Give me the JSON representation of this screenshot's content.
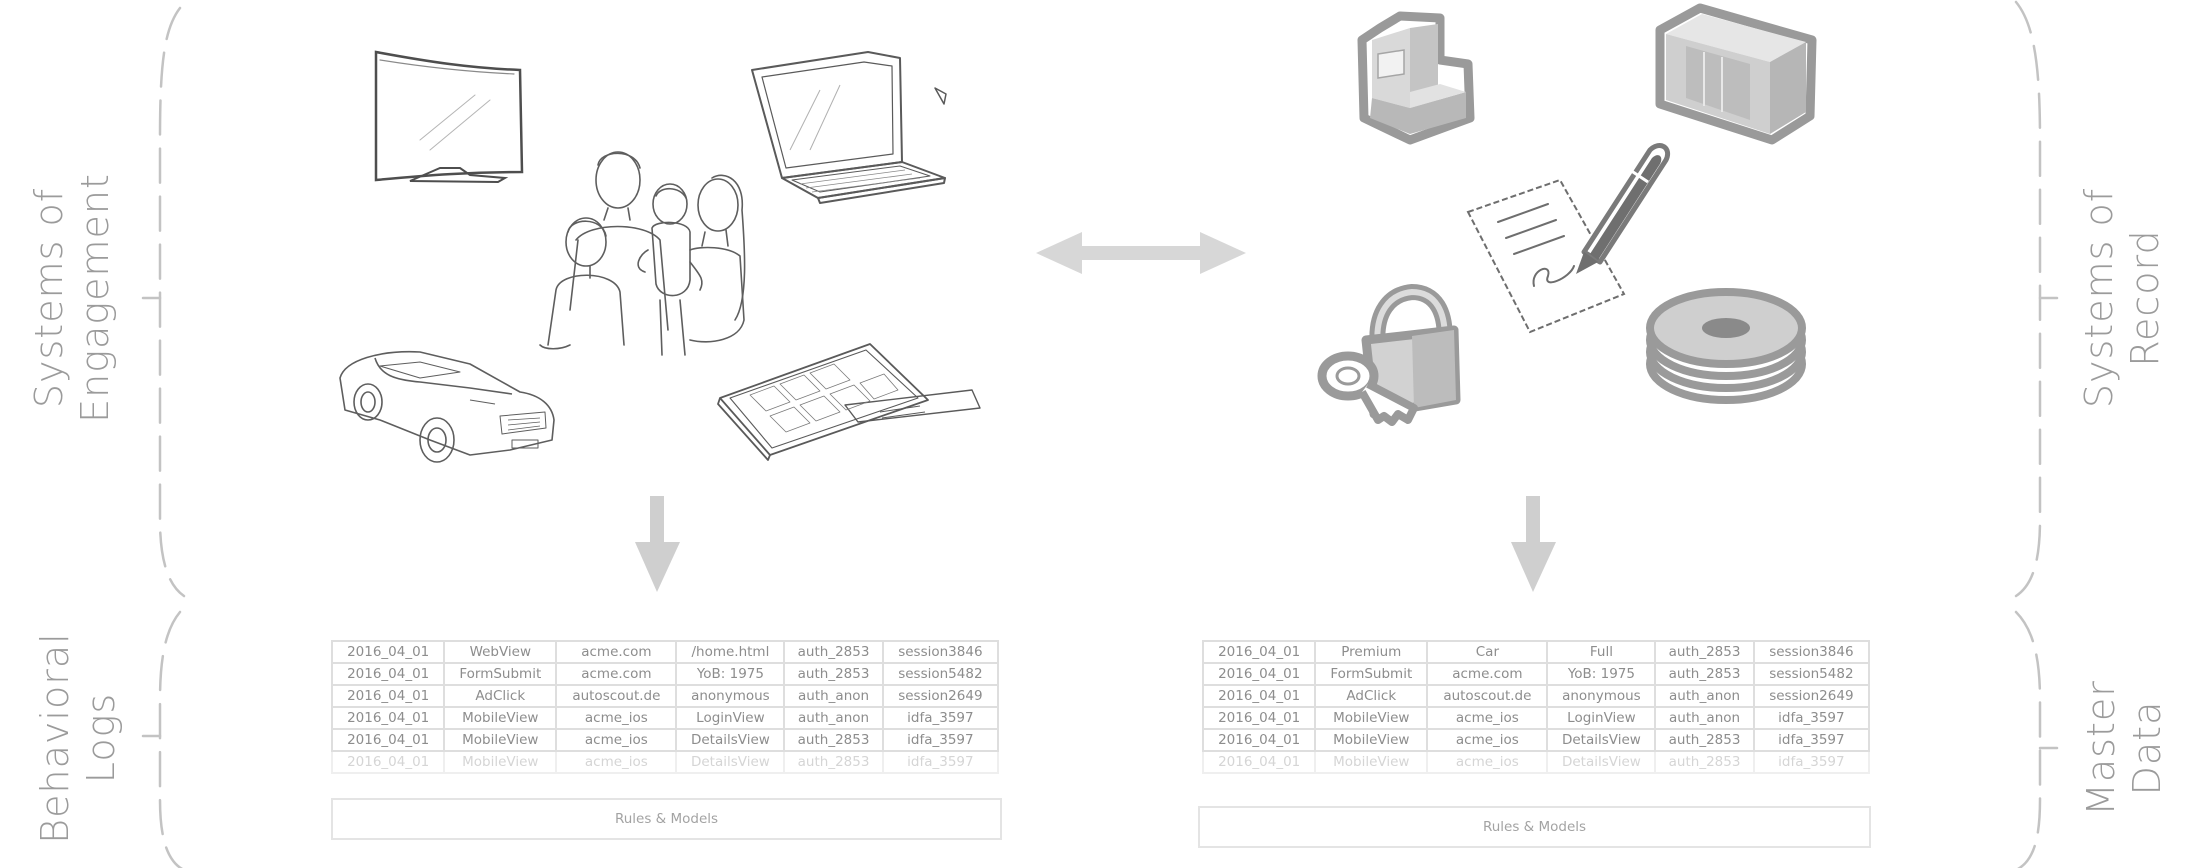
{
  "labels": {
    "systems_of_engagement": [
      "Systems of",
      "Engagement"
    ],
    "systems_of_record": [
      "Systems of",
      "Record"
    ],
    "behavioral_logs": [
      "Behavioral",
      "Logs"
    ],
    "master_data": [
      "Master",
      "Data"
    ]
  },
  "tables": {
    "behavioral_logs": {
      "rows": [
        [
          "2016_04_01",
          "WebView",
          "acme.com",
          "/home.html",
          "auth_2853",
          "session3846"
        ],
        [
          "2016_04_01",
          "FormSubmit",
          "acme.com",
          "YoB: 1975",
          "auth_2853",
          "session5482"
        ],
        [
          "2016_04_01",
          "AdClick",
          "autoscout.de",
          "anonymous",
          "auth_anon",
          "session2649"
        ],
        [
          "2016_04_01",
          "MobileView",
          "acme_ios",
          "LoginView",
          "auth_anon",
          "idfa_3597"
        ],
        [
          "2016_04_01",
          "MobileView",
          "acme_ios",
          "DetailsView",
          "auth_2853",
          "idfa_3597"
        ],
        [
          "2016_04_01",
          "MobileView",
          "acme_ios",
          "DetailsView",
          "auth_2853",
          "idfa_3597"
        ]
      ],
      "rules_label": "Rules & Models"
    },
    "master_data": {
      "rows": [
        [
          "2016_04_01",
          "Premium",
          "Car",
          "Full",
          "auth_2853",
          "session3846"
        ],
        [
          "2016_04_01",
          "FormSubmit",
          "acme.com",
          "YoB: 1975",
          "auth_2853",
          "session5482"
        ],
        [
          "2016_04_01",
          "AdClick",
          "autoscout.de",
          "anonymous",
          "auth_anon",
          "session2649"
        ],
        [
          "2016_04_01",
          "MobileView",
          "acme_ios",
          "LoginView",
          "auth_anon",
          "idfa_3597"
        ],
        [
          "2016_04_01",
          "MobileView",
          "acme_ios",
          "DetailsView",
          "auth_2853",
          "idfa_3597"
        ],
        [
          "2016_04_01",
          "MobileView",
          "acme_ios",
          "DetailsView",
          "auth_2853",
          "idfa_3597"
        ]
      ],
      "rules_label": "Rules & Models"
    }
  },
  "colors": {
    "frame": "#bdbdbd",
    "arrow": "#d6d6d6",
    "icon_gray": "#9a9a9a",
    "icon_light": "#cfcfcf",
    "sketch": "#6f6f6f"
  },
  "icons": {
    "engagement": [
      "curved-tv-icon",
      "family-sketch",
      "laptop-icon",
      "car-icon",
      "tablet-icon"
    ],
    "record": [
      "server-tower-icon",
      "server-cabinet-icon",
      "contract-pen-icon",
      "lock-key-icon",
      "disk-stack-icon"
    ]
  }
}
